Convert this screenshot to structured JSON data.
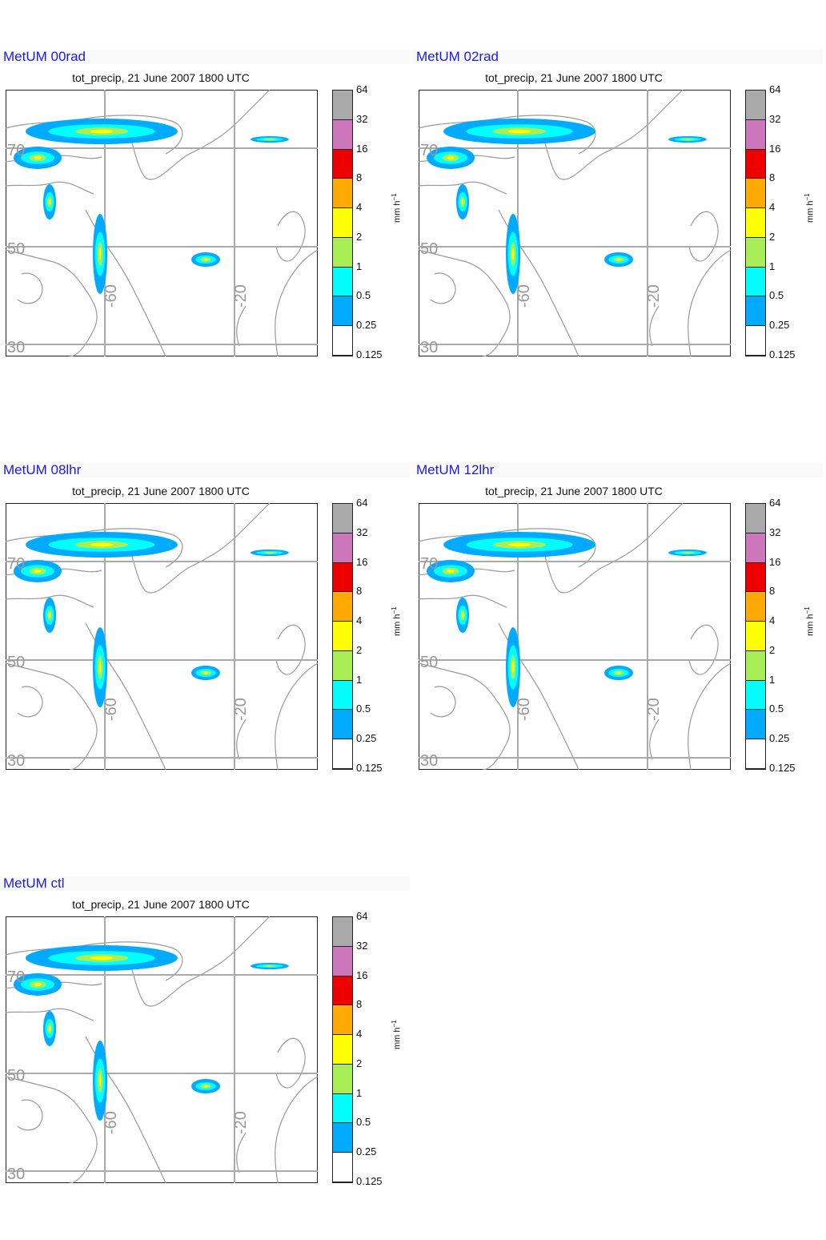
{
  "panels": [
    {
      "title": "MetUM 00rad",
      "subtitle": "tot_precip, 21 June 2007 1800 UTC"
    },
    {
      "title": "MetUM 02rad",
      "subtitle": "tot_precip, 21 June 2007 1800 UTC"
    },
    {
      "title": "MetUM 08lhr",
      "subtitle": "tot_precip, 21 June 2007 1800 UTC"
    },
    {
      "title": "MetUM 12lhr",
      "subtitle": "tot_precip, 21 June 2007 1800 UTC"
    },
    {
      "title": "MetUM ctl",
      "subtitle": "tot_precip, 21 June 2007 1800 UTC"
    }
  ],
  "map": {
    "lat_labels": [
      "70",
      "50",
      "30"
    ],
    "lon_labels": [
      "-60",
      "-20"
    ]
  },
  "colorbar": {
    "unit": "mm h",
    "unit_sup": "−1",
    "levels": [
      "64",
      "32",
      "16",
      "8",
      "4",
      "2",
      "1",
      "0.5",
      "0.25",
      "0.125"
    ],
    "colors": [
      "#aaaaaa",
      "#cc77bb",
      "#ee0000",
      "#ffaa00",
      "#ffff00",
      "#aaee55",
      "#00ffff",
      "#00aaff",
      "#ffffff"
    ]
  },
  "colors": {
    "title": "#1a1aee",
    "coast": "#999999",
    "grid": "#aaaaaa"
  }
}
